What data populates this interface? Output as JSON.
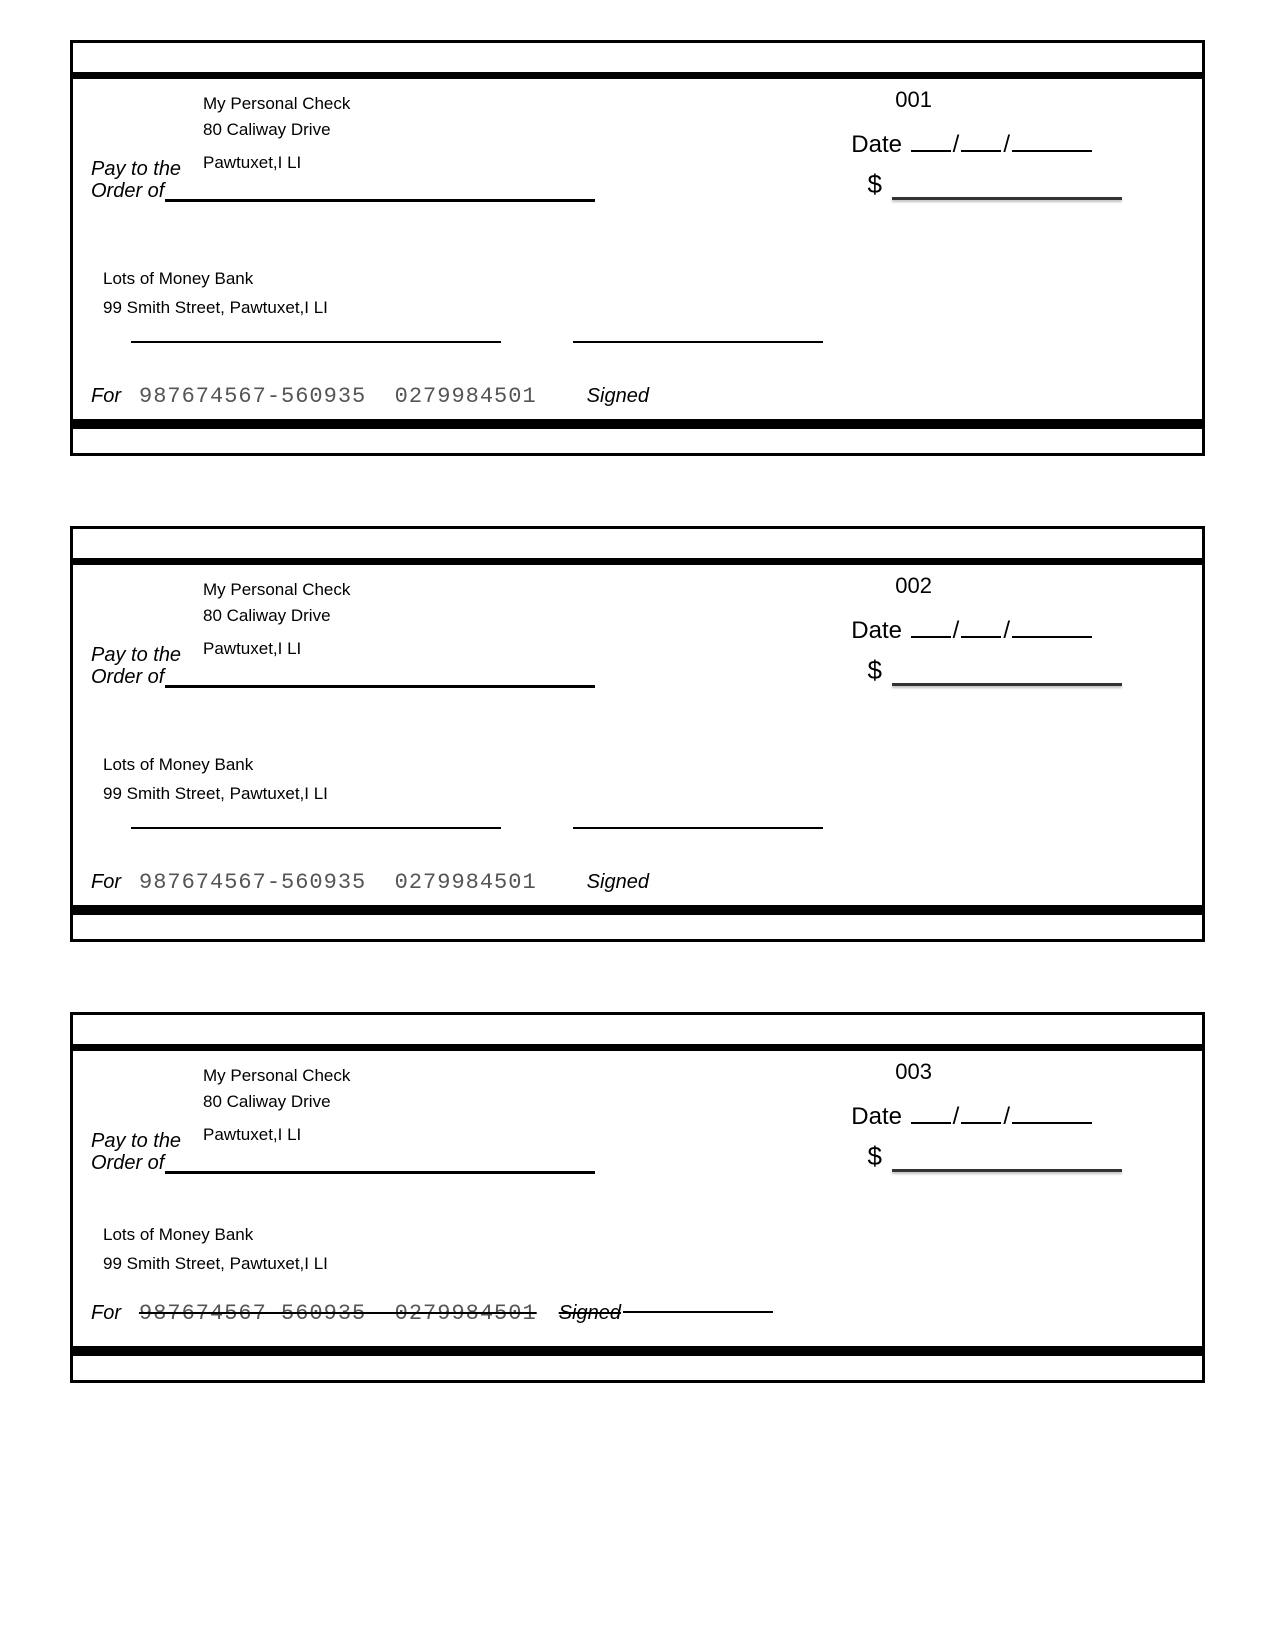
{
  "owner": {
    "name": "My Personal Check",
    "street": "80 Caliway Drive",
    "city": "Pawtuxet,I LI"
  },
  "bank": {
    "name": "Lots of Money Bank",
    "address": "99 Smith Street, Pawtuxet,I LI"
  },
  "labels": {
    "date": "Date",
    "pay_to_1": "Pay to the",
    "pay_to_2": "Order of",
    "for": "For",
    "signed": "Signed",
    "dollar": "$",
    "slash": "/"
  },
  "micr": {
    "routing": "987674567-560935",
    "account": "0279984501"
  },
  "checks": [
    {
      "number": "001",
      "variant": "normal"
    },
    {
      "number": "002",
      "variant": "normal"
    },
    {
      "number": "003",
      "variant": "c3"
    }
  ],
  "colors": {
    "border": "#000000",
    "background": "#ffffff",
    "micr_text": "#555555"
  }
}
